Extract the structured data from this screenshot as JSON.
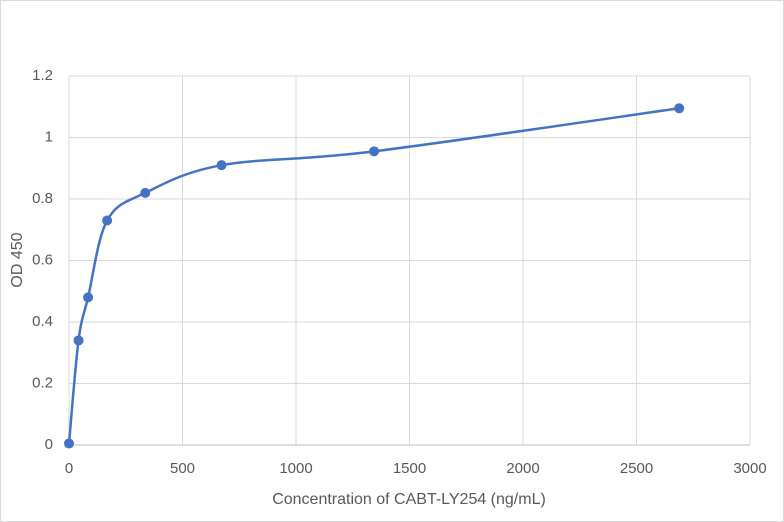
{
  "chart_data": {
    "type": "scatter",
    "line": "smooth",
    "color": "#4472c4",
    "x_label": "Concentration of CABT-LY254 (ng/mL)",
    "y_label": "OD 450",
    "x": [
      0,
      42,
      84,
      168,
      336,
      672,
      1344,
      2688
    ],
    "values": [
      0.005,
      0.34,
      0.48,
      0.73,
      0.82,
      0.91,
      0.955,
      1.095
    ],
    "xlim": [
      0,
      3000
    ],
    "xticks": [
      0,
      500,
      1000,
      1500,
      2000,
      2500,
      3000
    ],
    "ylim": [
      0,
      1.2
    ],
    "yticks": [
      0,
      0.2,
      0.4,
      0.6,
      0.8,
      1,
      1.2
    ],
    "grid": true
  }
}
